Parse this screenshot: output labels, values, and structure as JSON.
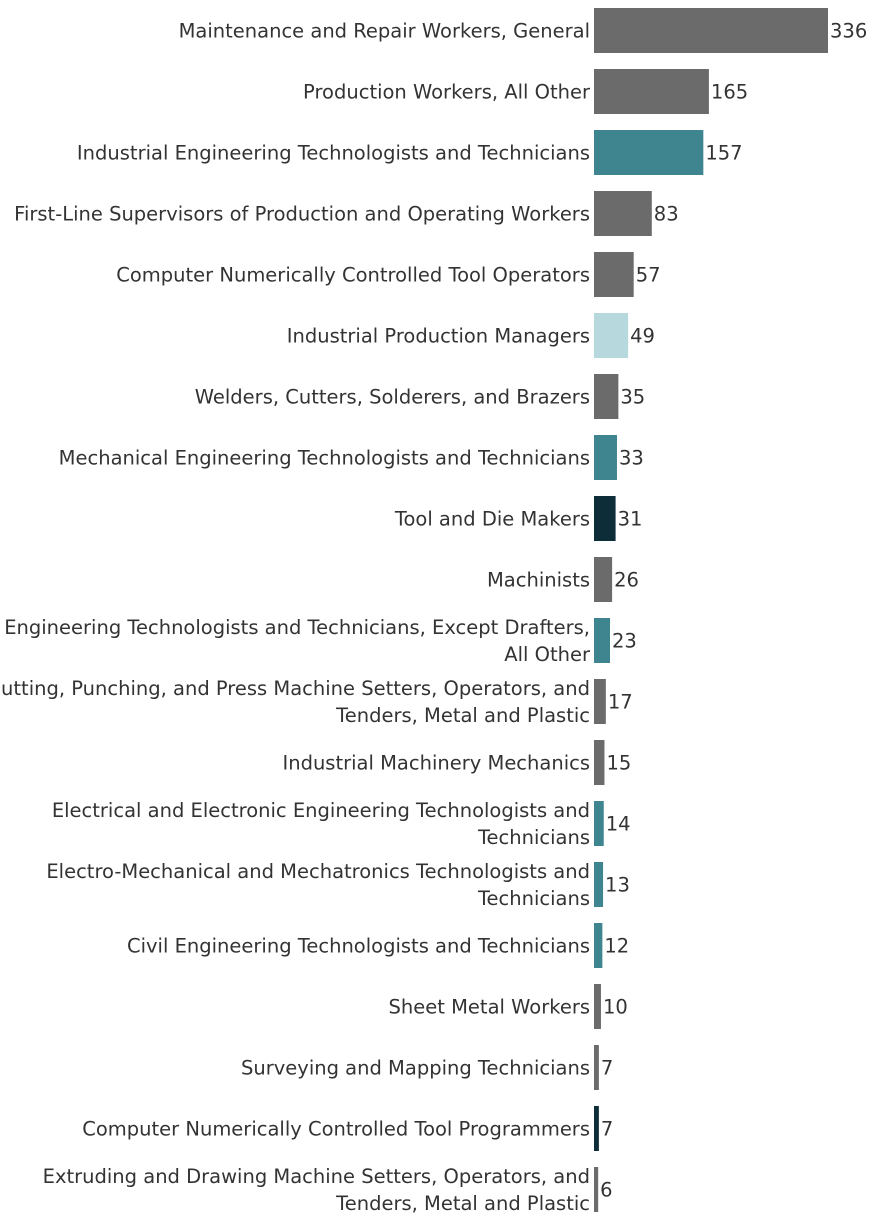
{
  "chart_data": {
    "type": "bar",
    "orientation": "horizontal",
    "title": "",
    "xlabel": "",
    "ylabel": "",
    "xlim": [
      0,
      336
    ],
    "grid": false,
    "legend": "none",
    "categories": [
      [
        "Maintenance and Repair Workers, General"
      ],
      [
        "Production Workers, All Other"
      ],
      [
        "Industrial Engineering Technologists and Technicians"
      ],
      [
        "First-Line Supervisors of Production and Operating Workers"
      ],
      [
        "Computer Numerically Controlled Tool Operators"
      ],
      [
        "Industrial Production Managers"
      ],
      [
        "Welders, Cutters, Solderers, and Brazers"
      ],
      [
        "Mechanical Engineering Technologists and Technicians"
      ],
      [
        "Tool and Die Makers"
      ],
      [
        "Machinists"
      ],
      [
        "Engineering Technologists and Technicians, Except Drafters,",
        "All Other"
      ],
      [
        "Cutting, Punching, and Press Machine Setters, Operators, and",
        "Tenders, Metal and Plastic"
      ],
      [
        "Industrial Machinery Mechanics"
      ],
      [
        "Electrical and Electronic Engineering Technologists and",
        "Technicians"
      ],
      [
        "Electro-Mechanical and Mechatronics Technologists and",
        "Technicians"
      ],
      [
        "Civil Engineering Technologists and Technicians"
      ],
      [
        "Sheet Metal Workers"
      ],
      [
        "Surveying and Mapping Technicians"
      ],
      [
        "Computer Numerically Controlled Tool Programmers"
      ],
      [
        "Extruding and Drawing Machine Setters, Operators, and",
        "Tenders, Metal and Plastic"
      ]
    ],
    "values": [
      336,
      165,
      157,
      83,
      57,
      49,
      35,
      33,
      31,
      26,
      23,
      17,
      15,
      14,
      13,
      12,
      10,
      7,
      7,
      6
    ],
    "colors": [
      "#6b6b6b",
      "#6b6b6b",
      "#3f8590",
      "#6b6b6b",
      "#6b6b6b",
      "#b7d8dc",
      "#6b6b6b",
      "#3f8590",
      "#0d2d38",
      "#6b6b6b",
      "#3f8590",
      "#6b6b6b",
      "#6b6b6b",
      "#3f8590",
      "#3f8590",
      "#3f8590",
      "#6b6b6b",
      "#6b6b6b",
      "#0d2d38",
      "#6b6b6b"
    ]
  }
}
